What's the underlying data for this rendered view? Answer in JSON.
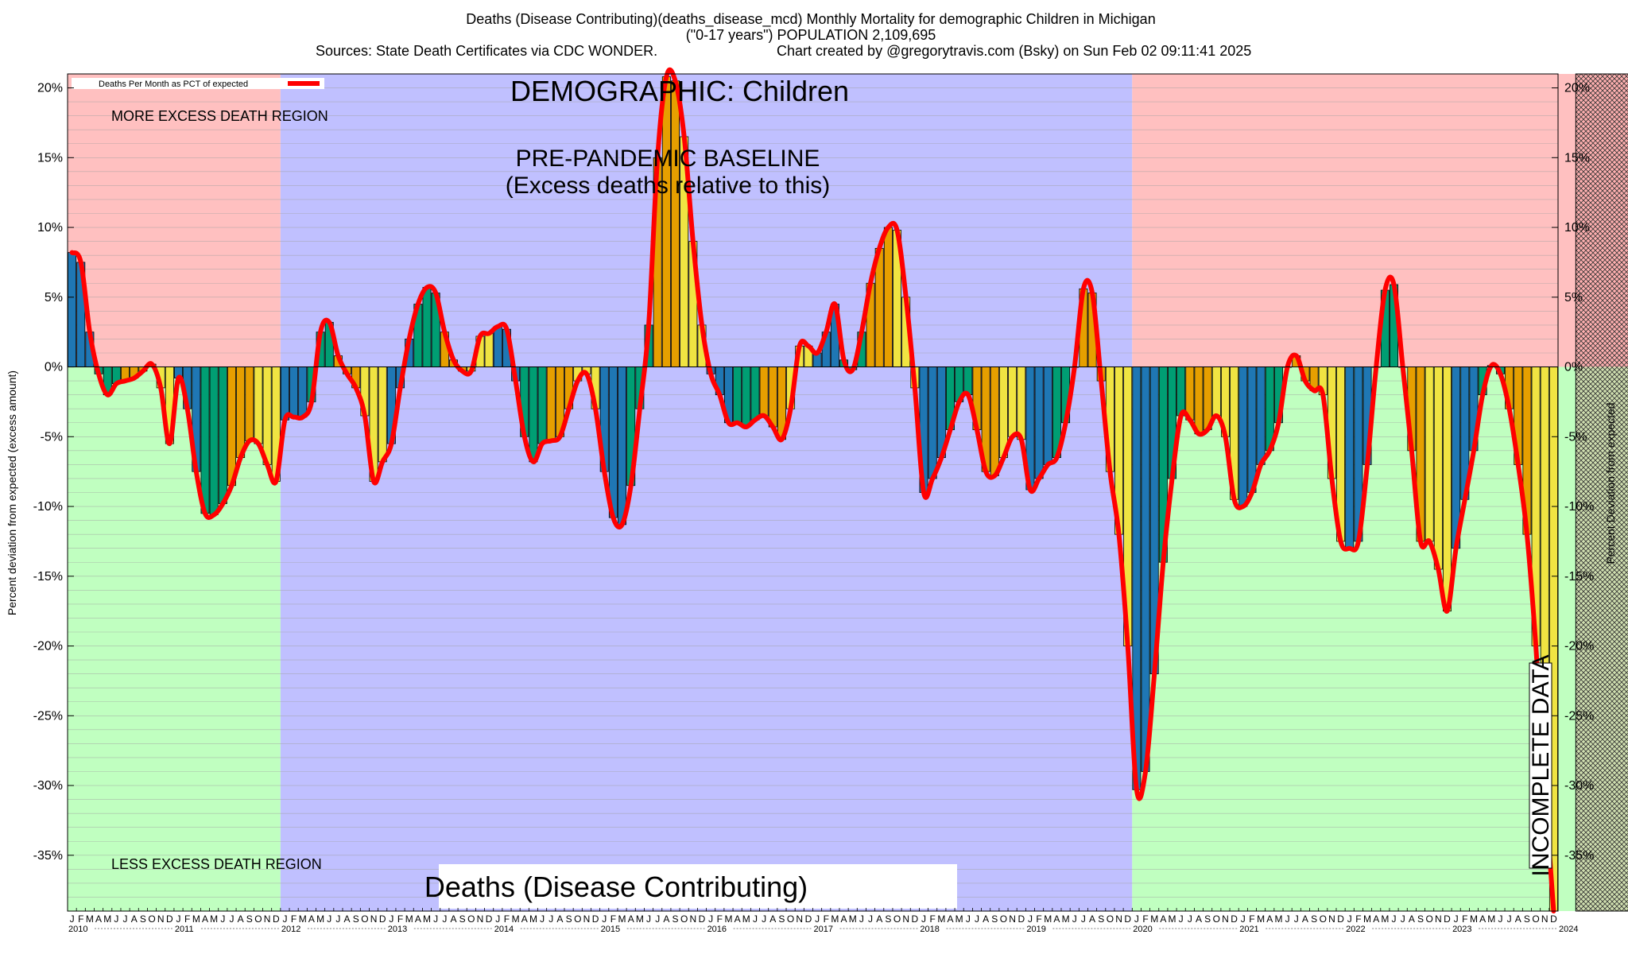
{
  "chart_data": {
    "type": "bar",
    "title": "Deaths (Disease Contributing)(deaths_disease_mcd) Monthly Mortality for demographic Children in Michigan",
    "subtitle": "(\"0-17 years\") POPULATION 2,109,695",
    "source_line": "Sources: State Death Certificates via CDC WONDER.",
    "credit_line": "Chart created by @gregorytravis.com (Bsky) on Sun Feb 02 09:11:41 2025",
    "ylabel_left": "Percent deviation from expected (excess amount)",
    "ylabel_right": "Percent Deviation from expected",
    "ylim": [
      -39,
      21
    ],
    "yticks": [
      20,
      15,
      10,
      5,
      0,
      -5,
      -10,
      -15,
      -20,
      -25,
      -30,
      -35
    ],
    "ytick_labels": [
      "20%",
      "15%",
      "10%",
      "5%",
      "0%",
      "-5%",
      "-10%",
      "-15%",
      "-20%",
      "-25%",
      "-30%",
      "-35%"
    ],
    "legend": {
      "label": "Deaths Per Month as PCT of expected",
      "placement": "top-left",
      "color": "#ff0000"
    },
    "annotations": {
      "demographic": "DEMOGRAPHIC: Children",
      "baseline_1": "PRE-PANDEMIC BASELINE",
      "baseline_2": "(Excess deaths relative to this)",
      "more_region": "MORE EXCESS DEATH REGION",
      "less_region": "LESS EXCESS DEATH REGION",
      "footer_label": "Deaths (Disease Contributing)",
      "incomplete": "INCOMPLETE DATA"
    },
    "month_letters": [
      "J",
      "F",
      "M",
      "A",
      "M",
      "J",
      "J",
      "A",
      "S",
      "O",
      "N",
      "D"
    ],
    "years": [
      "2010",
      "2011",
      "2012",
      "2013",
      "2014",
      "2015",
      "2016",
      "2017",
      "2018",
      "2019",
      "2020",
      "2021",
      "2022",
      "2023",
      "2024"
    ],
    "start": "2010-01",
    "regions": [
      {
        "name": "pre-baseline",
        "from": "2010-01",
        "to": "2011-12"
      },
      {
        "name": "baseline",
        "from": "2012-01",
        "to": "2019-12"
      },
      {
        "name": "pandemic",
        "from": "2020-01",
        "to": "2024-12"
      },
      {
        "name": "incomplete",
        "from": "2024-03",
        "to": "2024-12"
      }
    ],
    "colors": {
      "upper_pink": "#ffc0c0",
      "lower_green": "#c0ffc0",
      "baseline_blue": "#c0c0ff",
      "bar_palette": [
        "#1f77b4",
        "#009e73",
        "#e69f00",
        "#f0e442"
      ],
      "line": "#ff0000",
      "incomplete": "#ff8080"
    },
    "values": [
      8.2,
      7.5,
      2.5,
      -0.5,
      -2.0,
      -1.2,
      -1.0,
      -0.8,
      -0.3,
      0.2,
      -1.5,
      -5.5,
      -0.8,
      -3.0,
      -7.5,
      -10.5,
      -10.6,
      -9.8,
      -8.5,
      -6.5,
      -5.3,
      -5.5,
      -7.0,
      -8.2,
      -3.8,
      -3.6,
      -3.6,
      -2.5,
      2.5,
      3.2,
      0.8,
      -0.5,
      -1.5,
      -3.5,
      -8.2,
      -6.8,
      -5.5,
      -1.5,
      2.0,
      4.5,
      5.7,
      5.3,
      2.5,
      0.5,
      -0.3,
      -0.3,
      2.2,
      2.4,
      2.9,
      2.7,
      -1.0,
      -5.0,
      -6.8,
      -5.5,
      -5.3,
      -5.0,
      -3.0,
      -1.0,
      -0.5,
      -3.0,
      -7.5,
      -10.8,
      -11.3,
      -8.5,
      -3.0,
      3.0,
      15.0,
      20.8,
      20.5,
      16.5,
      9.0,
      3.0,
      -0.5,
      -2.0,
      -4.0,
      -4.0,
      -4.3,
      -3.8,
      -3.5,
      -4.3,
      -5.2,
      -3.0,
      1.5,
      1.5,
      1.0,
      2.5,
      4.5,
      0.5,
      -0.2,
      2.5,
      6.0,
      8.5,
      10.0,
      9.8,
      5.0,
      -1.5,
      -9.0,
      -8.0,
      -6.5,
      -4.5,
      -2.5,
      -2.0,
      -4.5,
      -7.5,
      -7.8,
      -6.5,
      -5.0,
      -5.2,
      -8.8,
      -8.0,
      -7.0,
      -6.5,
      -4.0,
      0.0,
      5.6,
      5.3,
      -1.0,
      -7.5,
      -12.0,
      -20.0,
      -30.3,
      -29.0,
      -22.0,
      -14.0,
      -8.0,
      -3.5,
      -3.8,
      -4.8,
      -4.5,
      -3.5,
      -5.0,
      -9.5,
      -10.0,
      -9.0,
      -7.0,
      -6.0,
      -4.0,
      0.0,
      0.8,
      -1.0,
      -1.7,
      -2.0,
      -8.0,
      -12.5,
      -13.0,
      -12.5,
      -7.0,
      0.0,
      5.5,
      5.9,
      0.0,
      -6.0,
      -12.5,
      -12.5,
      -14.5,
      -17.5,
      -13.0,
      -9.5,
      -6.0,
      -2.0,
      0.1,
      -0.5,
      -3.0,
      -7.0,
      -12.0,
      -20.0,
      -30.0,
      -39.0
    ]
  }
}
